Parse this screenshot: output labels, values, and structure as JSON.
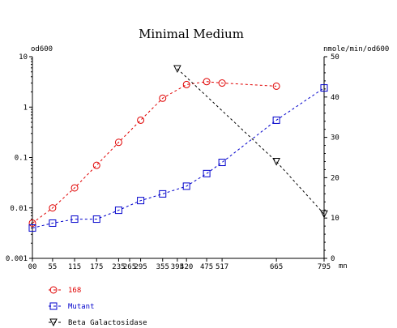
{
  "chart_data": {
    "type": "line",
    "title": "Minimal Medium",
    "xlabel": "mn",
    "ylabel_left": "od600",
    "ylabel_right": "nmole/min/od600",
    "x_ticks": [
      0,
      55,
      115,
      175,
      235,
      265,
      295,
      355,
      395,
      420,
      475,
      517,
      665,
      795
    ],
    "x_tick_labels": [
      "00",
      "55",
      "115",
      "175",
      "235",
      "265",
      "295",
      "355",
      "395",
      "420",
      "475",
      "517",
      "665",
      "795"
    ],
    "xlim": [
      0,
      795
    ],
    "y_left_scale": "log",
    "y_left_lim": [
      0.001,
      10
    ],
    "y_left_ticks": [
      0.001,
      0.01,
      0.1,
      1,
      10
    ],
    "y_left_tick_labels": [
      "0.001",
      "0.01",
      "0.1",
      "1",
      "10"
    ],
    "y_right_lim": [
      0,
      50
    ],
    "y_right_ticks": [
      0,
      10,
      20,
      30,
      40,
      50
    ],
    "y_right_tick_labels": [
      "0",
      "10",
      "20",
      "30",
      "40",
      "50"
    ],
    "series": [
      {
        "name": "168",
        "axis": "left",
        "color": "#e00000",
        "marker": "circle",
        "x": [
          0,
          55,
          115,
          175,
          235,
          295,
          355,
          420,
          475,
          517,
          665
        ],
        "y": [
          0.005,
          0.01,
          0.025,
          0.07,
          0.2,
          0.55,
          1.5,
          2.8,
          3.2,
          3.0,
          2.6
        ]
      },
      {
        "name": "Mutant",
        "axis": "left",
        "color": "#0000cc",
        "marker": "square",
        "x": [
          0,
          55,
          115,
          175,
          235,
          295,
          355,
          420,
          475,
          517,
          665,
          795
        ],
        "y": [
          0.004,
          0.005,
          0.006,
          0.006,
          0.009,
          0.014,
          0.019,
          0.027,
          0.048,
          0.08,
          0.55,
          2.4
        ]
      },
      {
        "name": "Beta Galactosidase",
        "axis": "right",
        "color": "#000000",
        "marker": "triangle-down",
        "x": [
          395,
          665,
          795
        ],
        "y": [
          47,
          24,
          11
        ]
      }
    ],
    "legend_position": "bottom-left",
    "grid": false
  }
}
